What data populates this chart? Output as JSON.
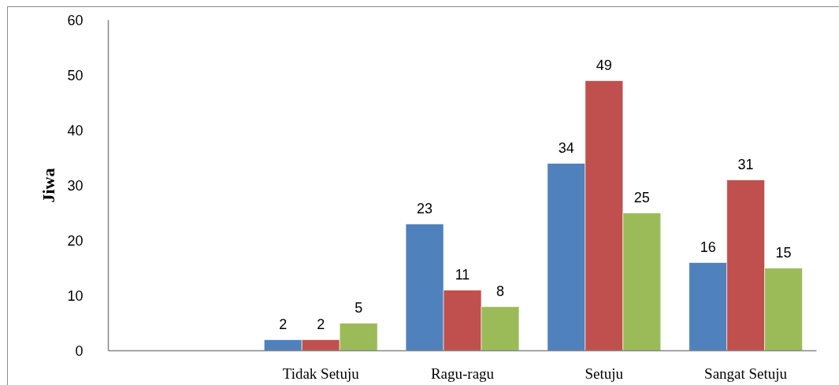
{
  "chart_data": {
    "type": "bar",
    "ylabel": "Jiwa",
    "categories": [
      null,
      "Tidak Setuju",
      "Ragu-ragu",
      "Setuju",
      "Sangat Setuju"
    ],
    "series": [
      {
        "color": "#4f81bd",
        "values": [
          null,
          2,
          23,
          34,
          16
        ]
      },
      {
        "color": "#c0504d",
        "values": [
          null,
          2,
          11,
          49,
          31
        ]
      },
      {
        "color": "#9bbb59",
        "values": [
          null,
          5,
          8,
          25,
          15
        ]
      }
    ],
    "ylim": [
      0,
      60
    ],
    "yticks": [
      0,
      10,
      20,
      30,
      40,
      50,
      60
    ],
    "data_labels": true
  }
}
